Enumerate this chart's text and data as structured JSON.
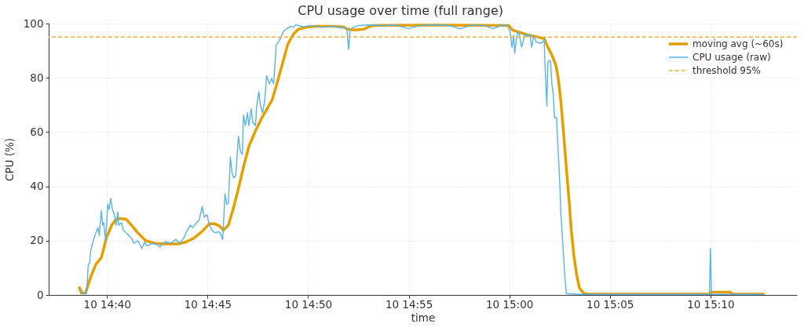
{
  "chart_data": {
    "type": "line",
    "title": "CPU usage over time (full range)",
    "xlabel": "time",
    "ylabel": "CPU (%)",
    "xlim": [
      "--01-10T14:37:06",
      "--01-10T15:14:18"
    ],
    "xticks": [
      {
        "value": "--01-10T14:40",
        "label": "10 14:40"
      },
      {
        "value": "--01-10T14:45",
        "label": "10 14:45"
      },
      {
        "value": "--01-10T14:50",
        "label": "10 14:50"
      },
      {
        "value": "--01-10T14:55",
        "label": "10 14:55"
      },
      {
        "value": "--01-10T15:00",
        "label": "10 15:00"
      },
      {
        "value": "--01-10T15:05",
        "label": "10 15:05"
      },
      {
        "value": "--01-10T15:10",
        "label": "10 15:10"
      }
    ],
    "ylim": [
      0,
      100
    ],
    "yticks": [
      0,
      20,
      40,
      60,
      80,
      100
    ],
    "grid": true,
    "legend": "top right",
    "series": [
      {
        "name": "moving avg (~60s)",
        "color": "#e69f00",
        "x": [
          "--01-10T14:38:38",
          "--01-10T14:38:44",
          "--01-10T14:38:56",
          "--01-10T14:39:11",
          "--01-10T14:39:27",
          "--01-10T14:39:43",
          "--01-10T14:39:58",
          "--01-10T14:40:14",
          "--01-10T14:40:26",
          "--01-10T14:40:37",
          "--01-10T14:40:57",
          "--01-10T14:41:13",
          "--01-10T14:41:32",
          "--01-10T14:41:55",
          "--01-10T14:42:23",
          "--01-10T14:42:54",
          "--01-10T14:43:33",
          "--01-10T14:43:56",
          "--01-10T14:44:19",
          "--01-10T14:44:43",
          "--01-10T14:45:05",
          "--01-10T14:45:22",
          "--01-10T14:45:37",
          "--01-10T14:45:47",
          "--01-10T14:46:02",
          "--01-10T14:46:16",
          "--01-10T14:46:32",
          "--01-10T14:46:47",
          "--01-10T14:47:03",
          "--01-10T14:47:23",
          "--01-10T14:47:42",
          "--01-10T14:47:58",
          "--01-10T14:48:13",
          "--01-10T14:48:29",
          "--01-10T14:48:44",
          "--01-10T14:48:59",
          "--01-10T14:49:16",
          "--01-10T14:49:31",
          "--01-10T14:49:55",
          "--01-10T14:50:26",
          "--01-10T14:51:13",
          "--01-10T14:51:43",
          "--01-10T14:51:59",
          "--01-10T14:52:19",
          "--01-10T14:52:46",
          "--01-10T14:53:01",
          "--01-10T14:53:17",
          "--01-10T14:56:30",
          "--01-10T14:59:58",
          "--01-10T15:00:10",
          "--01-10T15:00:34",
          "--01-10T15:00:57",
          "--01-10T15:01:20",
          "--01-10T15:01:44",
          "--01-10T15:01:55",
          "--01-10T15:02:07",
          "--01-10T15:02:19",
          "--01-10T15:02:26",
          "--01-10T15:02:34",
          "--01-10T15:02:42",
          "--01-10T15:02:50",
          "--01-10T15:02:58",
          "--01-10T15:03:05",
          "--01-10T15:03:13",
          "--01-10T15:03:21",
          "--01-10T15:03:29",
          "--01-10T15:03:41",
          "--01-10T15:03:52",
          "--01-10T15:10:00",
          "--01-10T15:10:02",
          "--01-10T15:11:00",
          "--01-10T15:11:03",
          "--01-10T15:12:38"
        ],
        "values": [
          2.6,
          0.7,
          0.7,
          6.5,
          11.3,
          13.7,
          20.9,
          25.7,
          27.7,
          28.2,
          27.9,
          25.7,
          22.9,
          20,
          19,
          18.8,
          18.8,
          19.5,
          20.9,
          23.3,
          26.2,
          26.2,
          25.3,
          23.8,
          25.7,
          31.5,
          39.2,
          47,
          54.7,
          60.5,
          65.3,
          68.7,
          72,
          78.8,
          85.5,
          92.3,
          96.1,
          97.9,
          98.7,
          99,
          99,
          98.8,
          97.9,
          97.6,
          97.9,
          98.8,
          99.3,
          99.4,
          99.3,
          97.6,
          96.6,
          95.7,
          95.2,
          94.4,
          91.3,
          88.4,
          84.6,
          79.8,
          71.1,
          59.5,
          47,
          35.4,
          23.8,
          14.2,
          7.4,
          2.6,
          0.7,
          0.3,
          0.3,
          1,
          1,
          0.3,
          0.3
        ]
      },
      {
        "name": "CPU usage (raw)",
        "color": "#56b4e9",
        "x": [
          "--01-10T14:38:43",
          "--01-10T14:38:49",
          "--01-10T14:38:58",
          "--01-10T14:39:00",
          "--01-10T14:39:04",
          "--01-10T14:39:08",
          "--01-10T14:39:11",
          "--01-10T14:39:19",
          "--01-10T14:39:27",
          "--01-10T14:39:33",
          "--01-10T14:39:37",
          "--01-10T14:39:43",
          "--01-10T14:39:47",
          "--01-10T14:39:50",
          "--01-10T14:39:56",
          "--01-10T14:40:02",
          "--01-10T14:40:06",
          "--01-10T14:40:11",
          "--01-10T14:40:16",
          "--01-10T14:40:22",
          "--01-10T14:40:27",
          "--01-10T14:40:32",
          "--01-10T14:40:35",
          "--01-10T14:40:43",
          "--01-10T14:40:49",
          "--01-10T14:40:57",
          "--01-10T14:41:05",
          "--01-10T14:41:13",
          "--01-10T14:41:20",
          "--01-10T14:41:32",
          "--01-10T14:41:44",
          "--01-10T14:41:52",
          "--01-10T14:41:59",
          "--01-10T14:42:15",
          "--01-10T14:42:31",
          "--01-10T14:42:38",
          "--01-10T14:42:54",
          "--01-10T14:43:10",
          "--01-10T14:43:25",
          "--01-10T14:43:37",
          "--01-10T14:43:49",
          "--01-10T14:43:56",
          "--01-10T14:44:08",
          "--01-10T14:44:16",
          "--01-10T14:44:27",
          "--01-10T14:44:35",
          "--01-10T14:44:44",
          "--01-10T14:44:50",
          "--01-10T14:44:58",
          "--01-10T14:45:06",
          "--01-10T14:45:13",
          "--01-10T14:45:22",
          "--01-10T14:45:34",
          "--01-10T14:45:41",
          "--01-10T14:45:45",
          "--01-10T14:45:52",
          "--01-10T14:45:57",
          "--01-10T14:46:02",
          "--01-10T14:46:08",
          "--01-10T14:46:13",
          "--01-10T14:46:18",
          "--01-10T14:46:24",
          "--01-10T14:46:32",
          "--01-10T14:46:38",
          "--01-10T14:46:44",
          "--01-10T14:46:47",
          "--01-10T14:46:53",
          "--01-10T14:46:59",
          "--01-10T14:47:03",
          "--01-10T14:47:10",
          "--01-10T14:47:15",
          "--01-10T14:47:23",
          "--01-10T14:47:26",
          "--01-10T14:47:33",
          "--01-10T14:47:38",
          "--01-10T14:47:44",
          "--01-10T14:47:50",
          "--01-10T14:47:56",
          "--01-10T14:48:04",
          "--01-10T14:48:11",
          "--01-10T14:48:17",
          "--01-10T14:48:25",
          "--01-10T14:48:32",
          "--01-10T14:48:40",
          "--01-10T14:48:46",
          "--01-10T14:48:56",
          "--01-10T14:49:08",
          "--01-10T14:49:16",
          "--01-10T14:49:23",
          "--01-10T14:49:47",
          "--01-10T14:50:10",
          "--01-10T14:50:41",
          "--01-10T14:51:12",
          "--01-10T14:51:43",
          "--01-10T14:51:55",
          "--01-10T14:52:01",
          "--01-10T14:52:05",
          "--01-10T14:52:11",
          "--01-10T14:52:31",
          "--01-10T14:53:02",
          "--01-10T14:53:41",
          "--01-10T14:54:20",
          "--01-10T14:54:58",
          "--01-10T14:55:37",
          "--01-10T14:56:32",
          "--01-10T14:57:03",
          "--01-10T14:57:34",
          "--01-10T14:58:05",
          "--01-10T14:58:44",
          "--01-10T14:59:12",
          "--01-10T14:59:39",
          "--01-10T14:59:55",
          "--01-10T15:00:02",
          "--01-10T15:00:08",
          "--01-10T15:00:13",
          "--01-10T15:00:16",
          "--01-10T15:00:22",
          "--01-10T15:00:28",
          "--01-10T15:00:37",
          "--01-10T15:00:46",
          "--01-10T15:00:55",
          "--01-10T15:01:01",
          "--01-10T15:01:07",
          "--01-10T15:01:13",
          "--01-10T15:01:20",
          "--01-10T15:01:32",
          "--01-10T15:01:40",
          "--01-10T15:01:44",
          "--01-10T15:01:46",
          "--01-10T15:01:49",
          "--01-10T15:01:52",
          "--01-10T15:01:55",
          "--01-10T15:01:59",
          "--01-10T15:02:03",
          "--01-10T15:02:07",
          "--01-10T15:02:11",
          "--01-10T15:02:15",
          "--01-10T15:02:21",
          "--01-10T15:02:25",
          "--01-10T15:02:30",
          "--01-10T15:02:34",
          "--01-10T15:02:40",
          "--01-10T15:02:46",
          "--01-10T15:02:50",
          "--01-10T15:03:30",
          "--01-10T15:05:00",
          "--01-10T15:07:00",
          "--01-10T15:09:57",
          "--01-10T15:10:00",
          "--01-10T15:10:03",
          "--01-10T15:11:30",
          "--01-10T15:12:36"
        ],
        "values": [
          2.1,
          0.5,
          0.5,
          2.6,
          11.1,
          11.6,
          16.1,
          20,
          22.9,
          24.8,
          21.9,
          31,
          25.7,
          26.6,
          20,
          33.4,
          31.5,
          35.6,
          31.5,
          29.6,
          25.7,
          30.6,
          25.7,
          26.6,
          23.8,
          22.9,
          21.9,
          20.9,
          19,
          20,
          17.1,
          19.5,
          18,
          19,
          18.5,
          17.6,
          19.7,
          19,
          20.4,
          19,
          20.9,
          22.9,
          25.7,
          24.8,
          26.6,
          27.6,
          32.5,
          28.6,
          29.6,
          25.7,
          23.8,
          22.9,
          23.3,
          21.9,
          20.4,
          37.3,
          33.4,
          33.9,
          50.8,
          45,
          43.1,
          44,
          58.5,
          52.7,
          51.8,
          66.2,
          62.4,
          67.2,
          62.4,
          68.6,
          63.4,
          62.4,
          69.1,
          74.9,
          69.6,
          67.2,
          71.1,
          80.7,
          77.8,
          79.7,
          77.8,
          92.3,
          93.3,
          95.2,
          97.1,
          98.1,
          99,
          98.6,
          99.5,
          98.8,
          99.3,
          98.6,
          99,
          98.5,
          98.1,
          90.5,
          97.6,
          98.4,
          99.3,
          99.5,
          99.2,
          99.5,
          98.1,
          99.4,
          99.5,
          99.2,
          98,
          99.4,
          99.3,
          98.1,
          99.5,
          99.3,
          97.1,
          91.3,
          95.7,
          89,
          95.2,
          97.1,
          91.3,
          96.1,
          95.2,
          96.1,
          91.3,
          95.7,
          93.2,
          92.7,
          93.2,
          94.2,
          86.5,
          77.8,
          69.6,
          85.5,
          86.5,
          86,
          77.8,
          74,
          65.3,
          65.3,
          54.7,
          43.1,
          29.6,
          18,
          6.5,
          0.5,
          0.2,
          0.2,
          0.2,
          0.2,
          17.1,
          0.2,
          0.2,
          0.2
        ]
      }
    ],
    "ref_lines": [
      {
        "axis": "y",
        "value": 95,
        "label": "threshold 95%",
        "color": "#f0ad3a",
        "line_style": "dashed"
      }
    ]
  }
}
